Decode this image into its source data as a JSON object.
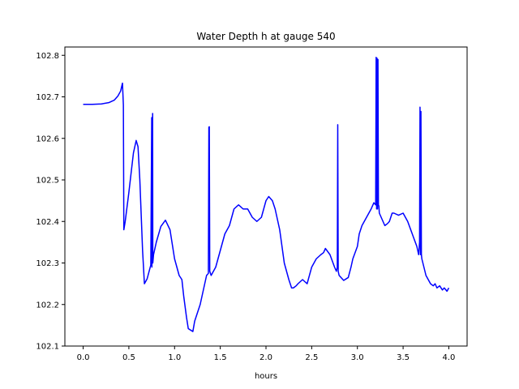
{
  "chart_data": {
    "type": "line",
    "title": "Water Depth h at gauge 540",
    "xlabel": "hours",
    "ylabel": "",
    "xlim": [
      -0.2,
      4.2
    ],
    "ylim": [
      102.1,
      102.82
    ],
    "xticks": [
      0.0,
      0.5,
      1.0,
      1.5,
      2.0,
      2.5,
      3.0,
      3.5,
      4.0
    ],
    "xtick_labels": [
      "0.0",
      "0.5",
      "1.0",
      "1.5",
      "2.0",
      "2.5",
      "3.0",
      "3.5",
      "4.0"
    ],
    "yticks": [
      102.1,
      102.2,
      102.3,
      102.4,
      102.5,
      102.6,
      102.7,
      102.8
    ],
    "ytick_labels": [
      "102.1",
      "102.2",
      "102.3",
      "102.4",
      "102.5",
      "102.6",
      "102.7",
      "102.8"
    ],
    "grid": false,
    "series": [
      {
        "color": "#0000ff",
        "x": [
          0.0,
          0.1,
          0.2,
          0.28,
          0.34,
          0.38,
          0.41,
          0.43,
          0.44,
          0.445,
          0.46,
          0.5,
          0.55,
          0.58,
          0.6,
          0.62,
          0.65,
          0.67,
          0.7,
          0.74,
          0.75,
          0.752,
          0.76,
          0.762,
          0.77,
          0.8,
          0.85,
          0.9,
          0.95,
          1.0,
          1.05,
          1.08,
          1.1,
          1.13,
          1.15,
          1.2,
          1.22,
          1.25,
          1.28,
          1.3,
          1.33,
          1.35,
          1.37,
          1.375,
          1.38,
          1.385,
          1.4,
          1.45,
          1.5,
          1.55,
          1.6,
          1.65,
          1.7,
          1.75,
          1.8,
          1.85,
          1.9,
          1.95,
          2.0,
          2.03,
          2.07,
          2.1,
          2.15,
          2.2,
          2.25,
          2.28,
          2.3,
          2.33,
          2.35,
          2.4,
          2.45,
          2.5,
          2.55,
          2.6,
          2.63,
          2.65,
          2.7,
          2.75,
          2.77,
          2.78,
          2.785,
          2.79,
          2.8,
          2.85,
          2.9,
          2.93,
          2.95,
          3.0,
          3.02,
          3.05,
          3.1,
          3.15,
          3.18,
          3.2,
          3.205,
          3.21,
          3.215,
          3.22,
          3.225,
          3.23,
          3.235,
          3.24,
          3.3,
          3.33,
          3.35,
          3.38,
          3.4,
          3.45,
          3.5,
          3.55,
          3.6,
          3.65,
          3.67,
          3.68,
          3.685,
          3.69,
          3.695,
          3.7,
          3.705,
          3.75,
          3.8,
          3.83,
          3.85,
          3.87,
          3.9,
          3.93,
          3.95,
          3.98,
          4.0
        ],
        "y": [
          102.682,
          102.682,
          102.683,
          102.686,
          102.692,
          102.702,
          102.714,
          102.733,
          102.68,
          102.38,
          102.4,
          102.47,
          102.565,
          102.595,
          102.58,
          102.5,
          102.33,
          102.25,
          102.262,
          102.295,
          102.65,
          102.29,
          102.66,
          102.3,
          102.32,
          102.35,
          102.388,
          102.403,
          102.38,
          102.31,
          102.27,
          102.26,
          102.22,
          102.17,
          102.142,
          102.135,
          102.16,
          102.18,
          102.2,
          102.22,
          102.25,
          102.27,
          102.275,
          102.627,
          102.628,
          102.28,
          102.27,
          102.29,
          102.33,
          102.37,
          102.39,
          102.43,
          102.44,
          102.43,
          102.43,
          102.41,
          102.4,
          102.41,
          102.45,
          102.46,
          102.45,
          102.43,
          102.38,
          102.3,
          102.26,
          102.24,
          102.24,
          102.245,
          102.25,
          102.26,
          102.25,
          102.29,
          102.31,
          102.32,
          102.325,
          102.335,
          102.32,
          102.29,
          102.28,
          102.29,
          102.633,
          102.28,
          102.27,
          102.258,
          102.265,
          102.29,
          102.31,
          102.34,
          102.37,
          102.39,
          102.41,
          102.43,
          102.445,
          102.44,
          102.795,
          102.43,
          102.793,
          102.43,
          102.79,
          102.44,
          102.437,
          102.42,
          102.39,
          102.395,
          102.4,
          102.42,
          102.42,
          102.415,
          102.42,
          102.4,
          102.37,
          102.34,
          102.32,
          102.35,
          102.675,
          102.32,
          102.665,
          102.32,
          102.31,
          102.27,
          102.25,
          102.245,
          102.25,
          102.24,
          102.245,
          102.235,
          102.24,
          102.232,
          102.24
        ]
      }
    ]
  }
}
